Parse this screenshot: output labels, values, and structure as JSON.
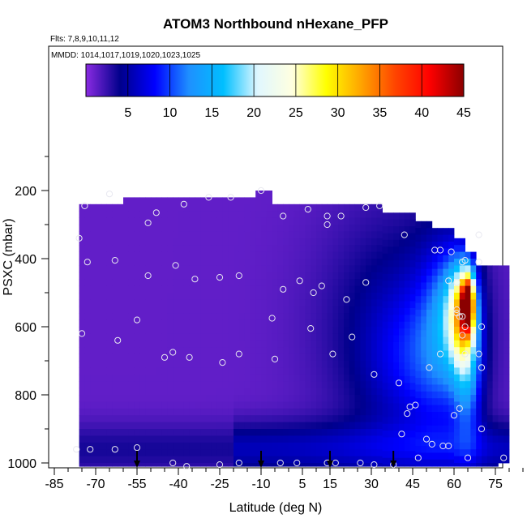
{
  "chart_data": {
    "type": "heatmap",
    "title": "ATOM3 Northbound nHexane_PFP",
    "flights_note": "Flts: 7,8,9,10,11,12",
    "dates_note": "MMDD: 1014,1017,1019,1020,1023,1025",
    "xlabel": "Latitude (deg N)",
    "ylabel": "PSXC (mbar)",
    "xlim": [
      -85,
      85
    ],
    "ylim": [
      1000,
      100
    ],
    "x_ticks": [
      "-85",
      "-70",
      "-55",
      "-40",
      "-25",
      "-10",
      "5",
      "15",
      "30",
      "45",
      "60",
      "75"
    ],
    "x_tick_values": [
      -85,
      -70,
      -55,
      -40,
      -25,
      -10,
      5,
      15,
      30,
      45,
      60,
      75
    ],
    "y_ticks": [
      "200",
      "400",
      "600",
      "800",
      "1000"
    ],
    "y_tick_values": [
      200,
      400,
      600,
      800,
      1000
    ],
    "colorbar": {
      "ticks": [
        "5",
        "10",
        "15",
        "20",
        "25",
        "30",
        "35",
        "40",
        "45"
      ],
      "tick_values": [
        5,
        10,
        15,
        20,
        25,
        30,
        35,
        40,
        45
      ],
      "range": [
        0,
        45
      ],
      "colors": [
        "#8a2be2",
        "#00008b",
        "#0000ff",
        "#1e90ff",
        "#00bfff",
        "#e0f7ff",
        "#ffffe0",
        "#ffff00",
        "#ffa500",
        "#ff4500",
        "#ff0000",
        "#8b0000"
      ]
    },
    "sample_points": [
      [
        -77,
        960
      ],
      [
        -72,
        960
      ],
      [
        -63,
        960
      ],
      [
        -55,
        955
      ],
      [
        -42,
        1000
      ],
      [
        -37,
        1010
      ],
      [
        -25,
        1005
      ],
      [
        -18,
        1000
      ],
      [
        -3,
        1000
      ],
      [
        3,
        1000
      ],
      [
        14,
        1000
      ],
      [
        17,
        1000
      ],
      [
        26,
        1000
      ],
      [
        31,
        1005
      ],
      [
        38,
        1005
      ],
      [
        47,
        985
      ],
      [
        65,
        985
      ],
      [
        78,
        985
      ],
      [
        61,
        550
      ],
      [
        -74,
        245
      ],
      [
        -65,
        210
      ],
      [
        -48,
        265
      ],
      [
        -51,
        295
      ],
      [
        -38,
        240
      ],
      [
        -29,
        220
      ],
      [
        -21,
        220
      ],
      [
        -10,
        200
      ],
      [
        -2,
        275
      ],
      [
        7,
        255
      ],
      [
        14,
        275
      ],
      [
        14,
        300
      ],
      [
        19,
        275
      ],
      [
        28,
        250
      ],
      [
        33,
        245
      ],
      [
        42,
        330
      ],
      [
        53,
        375
      ],
      [
        55,
        375
      ],
      [
        59,
        380
      ],
      [
        63,
        410
      ],
      [
        64,
        405
      ],
      [
        69,
        410
      ],
      [
        69,
        330
      ],
      [
        -76,
        340
      ],
      [
        -73,
        410
      ],
      [
        -63,
        405
      ],
      [
        -41,
        420
      ],
      [
        -51,
        450
      ],
      [
        -34,
        460
      ],
      [
        -25,
        455
      ],
      [
        -18,
        450
      ],
      [
        -2,
        490
      ],
      [
        4,
        465
      ],
      [
        9,
        500
      ],
      [
        12,
        480
      ],
      [
        21,
        520
      ],
      [
        28,
        470
      ],
      [
        58,
        465
      ],
      [
        61,
        470
      ],
      [
        61,
        560
      ],
      [
        63,
        570
      ],
      [
        64,
        600
      ],
      [
        70,
        600
      ],
      [
        -75,
        620
      ],
      [
        -62,
        640
      ],
      [
        -45,
        690
      ],
      [
        -42,
        675
      ],
      [
        -36,
        690
      ],
      [
        -24,
        705
      ],
      [
        -18,
        680
      ],
      [
        -5,
        695
      ],
      [
        8,
        605
      ],
      [
        16,
        680
      ],
      [
        23,
        630
      ],
      [
        31,
        740
      ],
      [
        40,
        765
      ],
      [
        51,
        720
      ],
      [
        55,
        680
      ],
      [
        63,
        625
      ],
      [
        64,
        680
      ],
      [
        69,
        680
      ],
      [
        70,
        720
      ],
      [
        -6,
        575
      ],
      [
        -55,
        580
      ],
      [
        62,
        570
      ],
      [
        46,
        830
      ],
      [
        44,
        835
      ],
      [
        56,
        950
      ],
      [
        58,
        950
      ],
      [
        43,
        855
      ],
      [
        52,
        945
      ],
      [
        70,
        900
      ],
      [
        62,
        840
      ],
      [
        60,
        860
      ],
      [
        41,
        915
      ],
      [
        50,
        930
      ]
    ],
    "arrow_latitudes": [
      -55,
      -10,
      15,
      38
    ],
    "x_marks": [
      -85,
      -80,
      -75,
      -70,
      -65,
      -60,
      -55,
      -50,
      -45,
      -40,
      -35,
      -30,
      -25,
      -20,
      -15,
      -10,
      -5,
      0,
      5,
      10,
      15,
      20,
      25,
      30,
      35,
      40,
      45,
      50,
      55,
      60,
      65,
      70,
      75,
      80,
      85
    ],
    "y_marks": [
      100,
      200,
      300,
      400,
      500,
      600,
      700,
      800,
      900,
      1000
    ]
  }
}
